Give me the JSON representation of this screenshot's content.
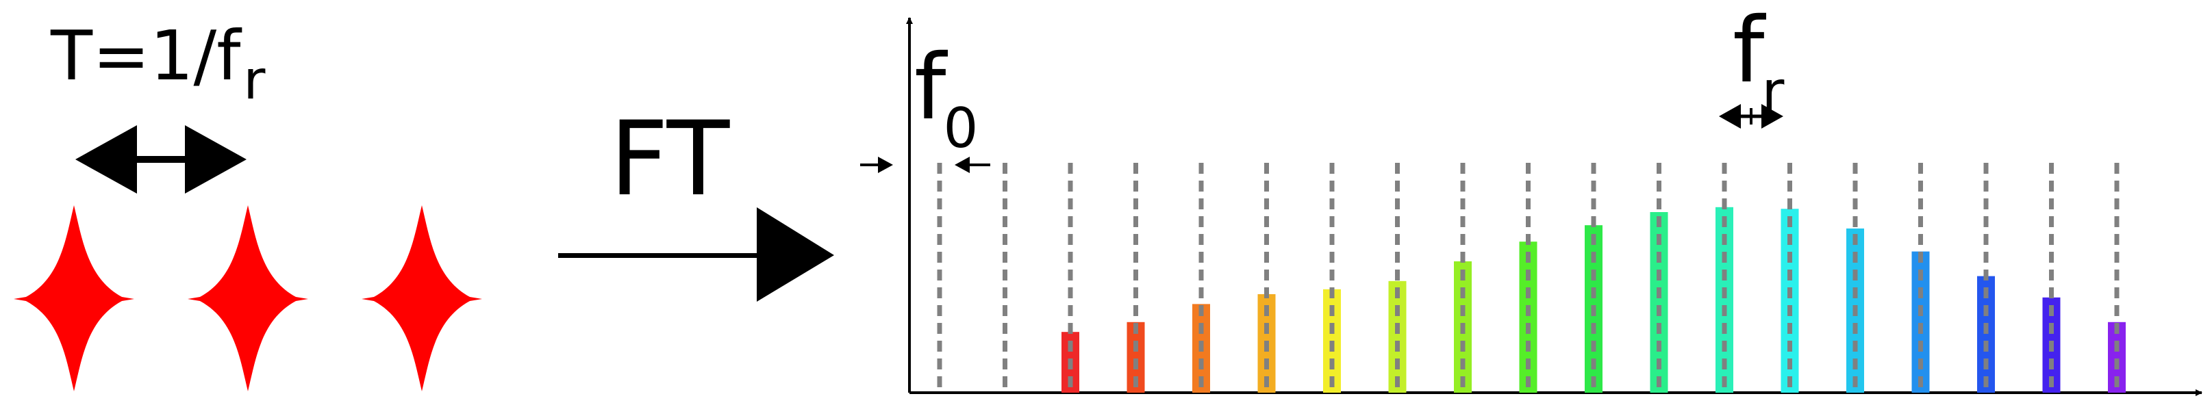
{
  "labels": {
    "period_main": "T=1/f",
    "period_sub": "r",
    "transform": "FT",
    "offset_main": "f",
    "offset_sub": "0",
    "spacing_main": "f",
    "spacing_sub": "r"
  },
  "colors": {
    "pulse": "#ff0000",
    "grid_line": "#808080",
    "ink": "#000000"
  },
  "pulse_count": 3,
  "comb": {
    "tooth_count": 19,
    "empty_teeth": 2,
    "bar_levels": [
      0.37,
      0.43,
      0.54,
      0.6,
      0.63,
      0.68,
      0.8,
      0.92,
      1.02,
      1.1,
      1.13,
      1.12,
      1.0,
      0.86,
      0.71,
      0.58,
      0.43
    ],
    "bar_colors": [
      "#ee2828",
      "#f04a1e",
      "#f27a20",
      "#f3ad22",
      "#f2ee2a",
      "#c3ef2a",
      "#95ee24",
      "#55ee28",
      "#2ee848",
      "#2aee8a",
      "#2af0b8",
      "#2af0ec",
      "#22c6ee",
      "#2290ee",
      "#2456ee",
      "#4422ee",
      "#8822ee"
    ]
  }
}
